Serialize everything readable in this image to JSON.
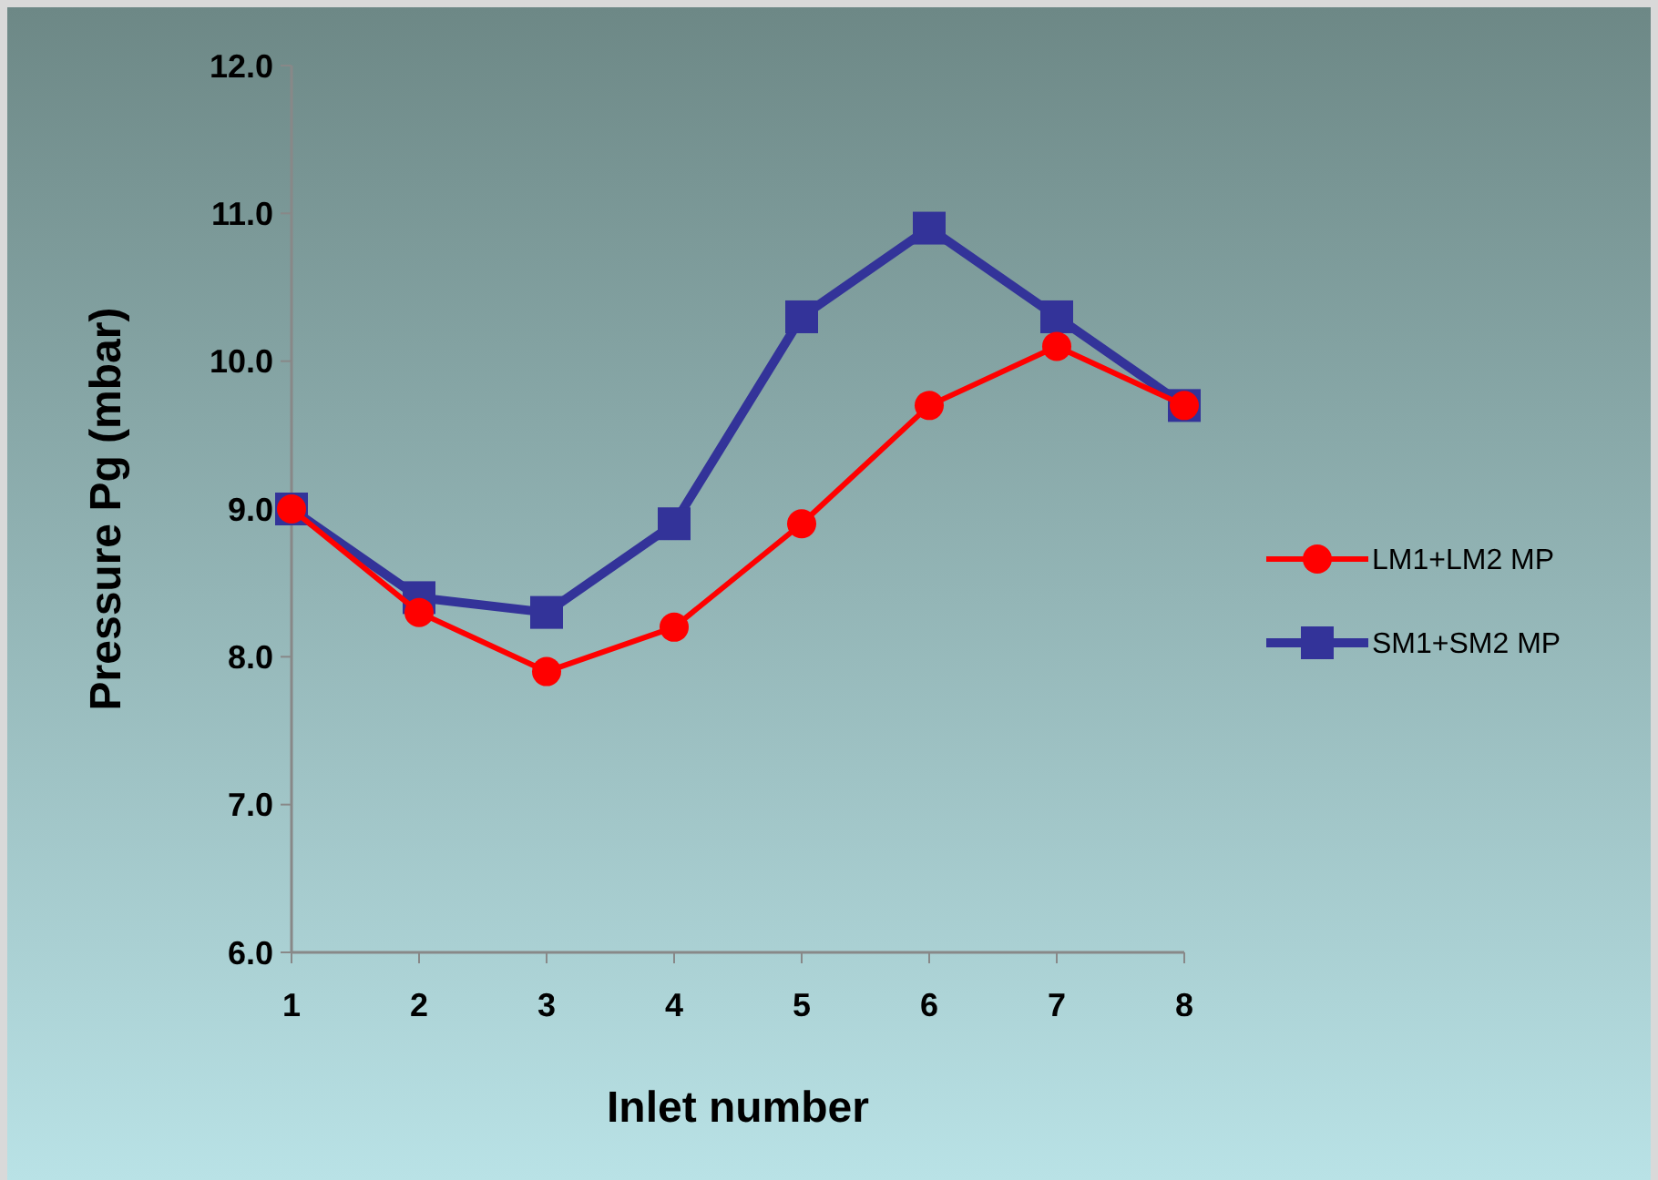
{
  "chart_data": {
    "type": "line",
    "xlabel": "Inlet number",
    "ylabel": "Pressure Pg (mbar)",
    "categories": [
      "1",
      "2",
      "3",
      "4",
      "5",
      "6",
      "7",
      "8"
    ],
    "ylim": [
      6,
      12
    ],
    "yticks": [
      {
        "value": 6,
        "label": "6.0"
      },
      {
        "value": 7,
        "label": "7.0"
      },
      {
        "value": 8,
        "label": "8.0"
      },
      {
        "value": 9,
        "label": "9.0"
      },
      {
        "value": 10,
        "label": "10.0"
      },
      {
        "value": 11,
        "label": "11.0"
      },
      {
        "value": 12,
        "label": "12.0"
      }
    ],
    "grid": false,
    "legend": "right",
    "series": [
      {
        "name": "LM1+LM2 MP",
        "color": "#ff0000",
        "marker": "circle",
        "values": [
          9.0,
          8.3,
          7.9,
          8.2,
          8.9,
          9.7,
          10.1,
          9.7
        ]
      },
      {
        "name": "SM1+SM2 MP",
        "color": "#333399",
        "marker": "square",
        "values": [
          9.0,
          8.4,
          8.3,
          8.9,
          10.3,
          10.9,
          10.3,
          9.7
        ]
      }
    ]
  }
}
